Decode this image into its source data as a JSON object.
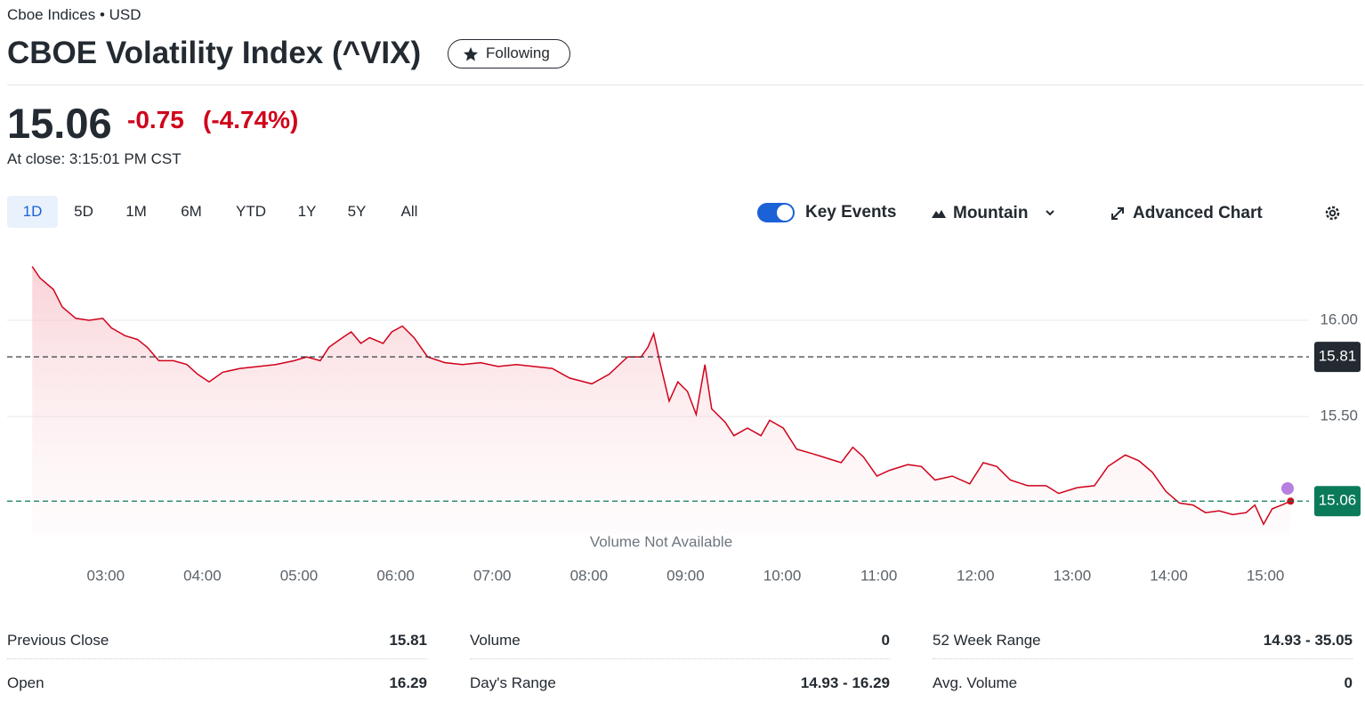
{
  "header": {
    "exchange": "Cboe Indices • USD",
    "title": "CBOE Volatility Index (^VIX)",
    "follow_button": "Following"
  },
  "quote": {
    "price": "15.06",
    "change": "-0.75",
    "change_percent": "(-4.74%)",
    "close_time": "At close: 3:15:01 PM CST"
  },
  "toolbar": {
    "ranges": [
      "1D",
      "5D",
      "1M",
      "6M",
      "YTD",
      "1Y",
      "5Y",
      "All"
    ],
    "key_events": "Key Events",
    "chart_type": "Mountain",
    "advanced_chart": "Advanced Chart"
  },
  "chart_data": {
    "type": "line",
    "x": [
      2.24,
      2.32,
      2.46,
      2.55,
      2.69,
      2.83,
      2.97,
      3.06,
      3.2,
      3.33,
      3.43,
      3.55,
      3.7,
      3.84,
      3.95,
      4.07,
      4.21,
      4.39,
      4.58,
      4.76,
      4.95,
      5.08,
      5.22,
      5.31,
      5.45,
      5.54,
      5.64,
      5.73,
      5.87,
      5.96,
      6.07,
      6.19,
      6.33,
      6.51,
      6.69,
      6.88,
      7.06,
      7.25,
      7.43,
      7.62,
      7.8,
      8.03,
      8.21,
      8.4,
      8.54,
      8.61,
      8.67,
      8.74,
      8.83,
      8.92,
      9.02,
      9.11,
      9.2,
      9.27,
      9.41,
      9.5,
      9.64,
      9.78,
      9.87,
      10.01,
      10.15,
      10.29,
      10.42,
      10.61,
      10.73,
      10.84,
      10.98,
      11.11,
      11.3,
      11.44,
      11.58,
      11.76,
      11.94,
      12.08,
      12.22,
      12.36,
      12.54,
      12.73,
      12.86,
      13.05,
      13.23,
      13.37,
      13.55,
      13.69,
      13.83,
      13.97,
      14.11,
      14.25,
      14.38,
      14.52,
      14.66,
      14.8,
      14.89,
      14.98,
      15.07,
      15.17,
      15.26
    ],
    "series": [
      {
        "name": "^VIX",
        "color": "#d0021b",
        "values": [
          16.28,
          16.22,
          16.16,
          16.07,
          16.01,
          16.0,
          16.01,
          15.96,
          15.92,
          15.9,
          15.86,
          15.79,
          15.79,
          15.77,
          15.72,
          15.68,
          15.73,
          15.75,
          15.76,
          15.77,
          15.79,
          15.81,
          15.79,
          15.86,
          15.91,
          15.94,
          15.88,
          15.91,
          15.88,
          15.94,
          15.97,
          15.91,
          15.81,
          15.78,
          15.77,
          15.78,
          15.76,
          15.77,
          15.76,
          15.75,
          15.7,
          15.67,
          15.72,
          15.81,
          15.81,
          15.86,
          15.93,
          15.77,
          15.58,
          15.68,
          15.63,
          15.51,
          15.77,
          15.54,
          15.47,
          15.4,
          15.44,
          15.4,
          15.48,
          15.44,
          15.33,
          15.31,
          15.29,
          15.26,
          15.34,
          15.29,
          15.19,
          15.22,
          15.25,
          15.24,
          15.17,
          15.19,
          15.15,
          15.26,
          15.24,
          15.17,
          15.14,
          15.14,
          15.1,
          15.13,
          15.14,
          15.24,
          15.3,
          15.27,
          15.21,
          15.11,
          15.05,
          15.04,
          15.0,
          15.01,
          14.99,
          15.0,
          15.04,
          14.94,
          15.02,
          15.04,
          15.06
        ]
      }
    ],
    "xlim": [
      1.98,
      15.45
    ],
    "xticks": [
      {
        "value": 3,
        "label": "03:00"
      },
      {
        "value": 4,
        "label": "04:00"
      },
      {
        "value": 5,
        "label": "05:00"
      },
      {
        "value": 6,
        "label": "06:00"
      },
      {
        "value": 7,
        "label": "07:00"
      },
      {
        "value": 8,
        "label": "08:00"
      },
      {
        "value": 9,
        "label": "09:00"
      },
      {
        "value": 10,
        "label": "10:00"
      },
      {
        "value": 11,
        "label": "11:00"
      },
      {
        "value": 12,
        "label": "12:00"
      },
      {
        "value": 13,
        "label": "13:00"
      },
      {
        "value": 14,
        "label": "14:00"
      },
      {
        "value": 15,
        "label": "15:00"
      }
    ],
    "ylim": [
      14.89,
      16.37
    ],
    "yticks": [
      {
        "value": 15.5,
        "label": "15.50"
      },
      {
        "value": 16,
        "label": "16.00"
      }
    ],
    "grid": true,
    "previous_close": 15.81,
    "last_price": 15.06,
    "annotation": "Volume Not Available"
  },
  "stats": [
    [
      {
        "label": "Previous Close",
        "value": "15.81"
      },
      {
        "label": "Open",
        "value": "16.29"
      }
    ],
    [
      {
        "label": "Volume",
        "value": "0"
      },
      {
        "label": "Day's Range",
        "value": "14.93 - 16.29"
      }
    ],
    [
      {
        "label": "52 Week Range",
        "value": "14.93 - 35.05"
      },
      {
        "label": "Avg. Volume",
        "value": "0"
      }
    ]
  ]
}
